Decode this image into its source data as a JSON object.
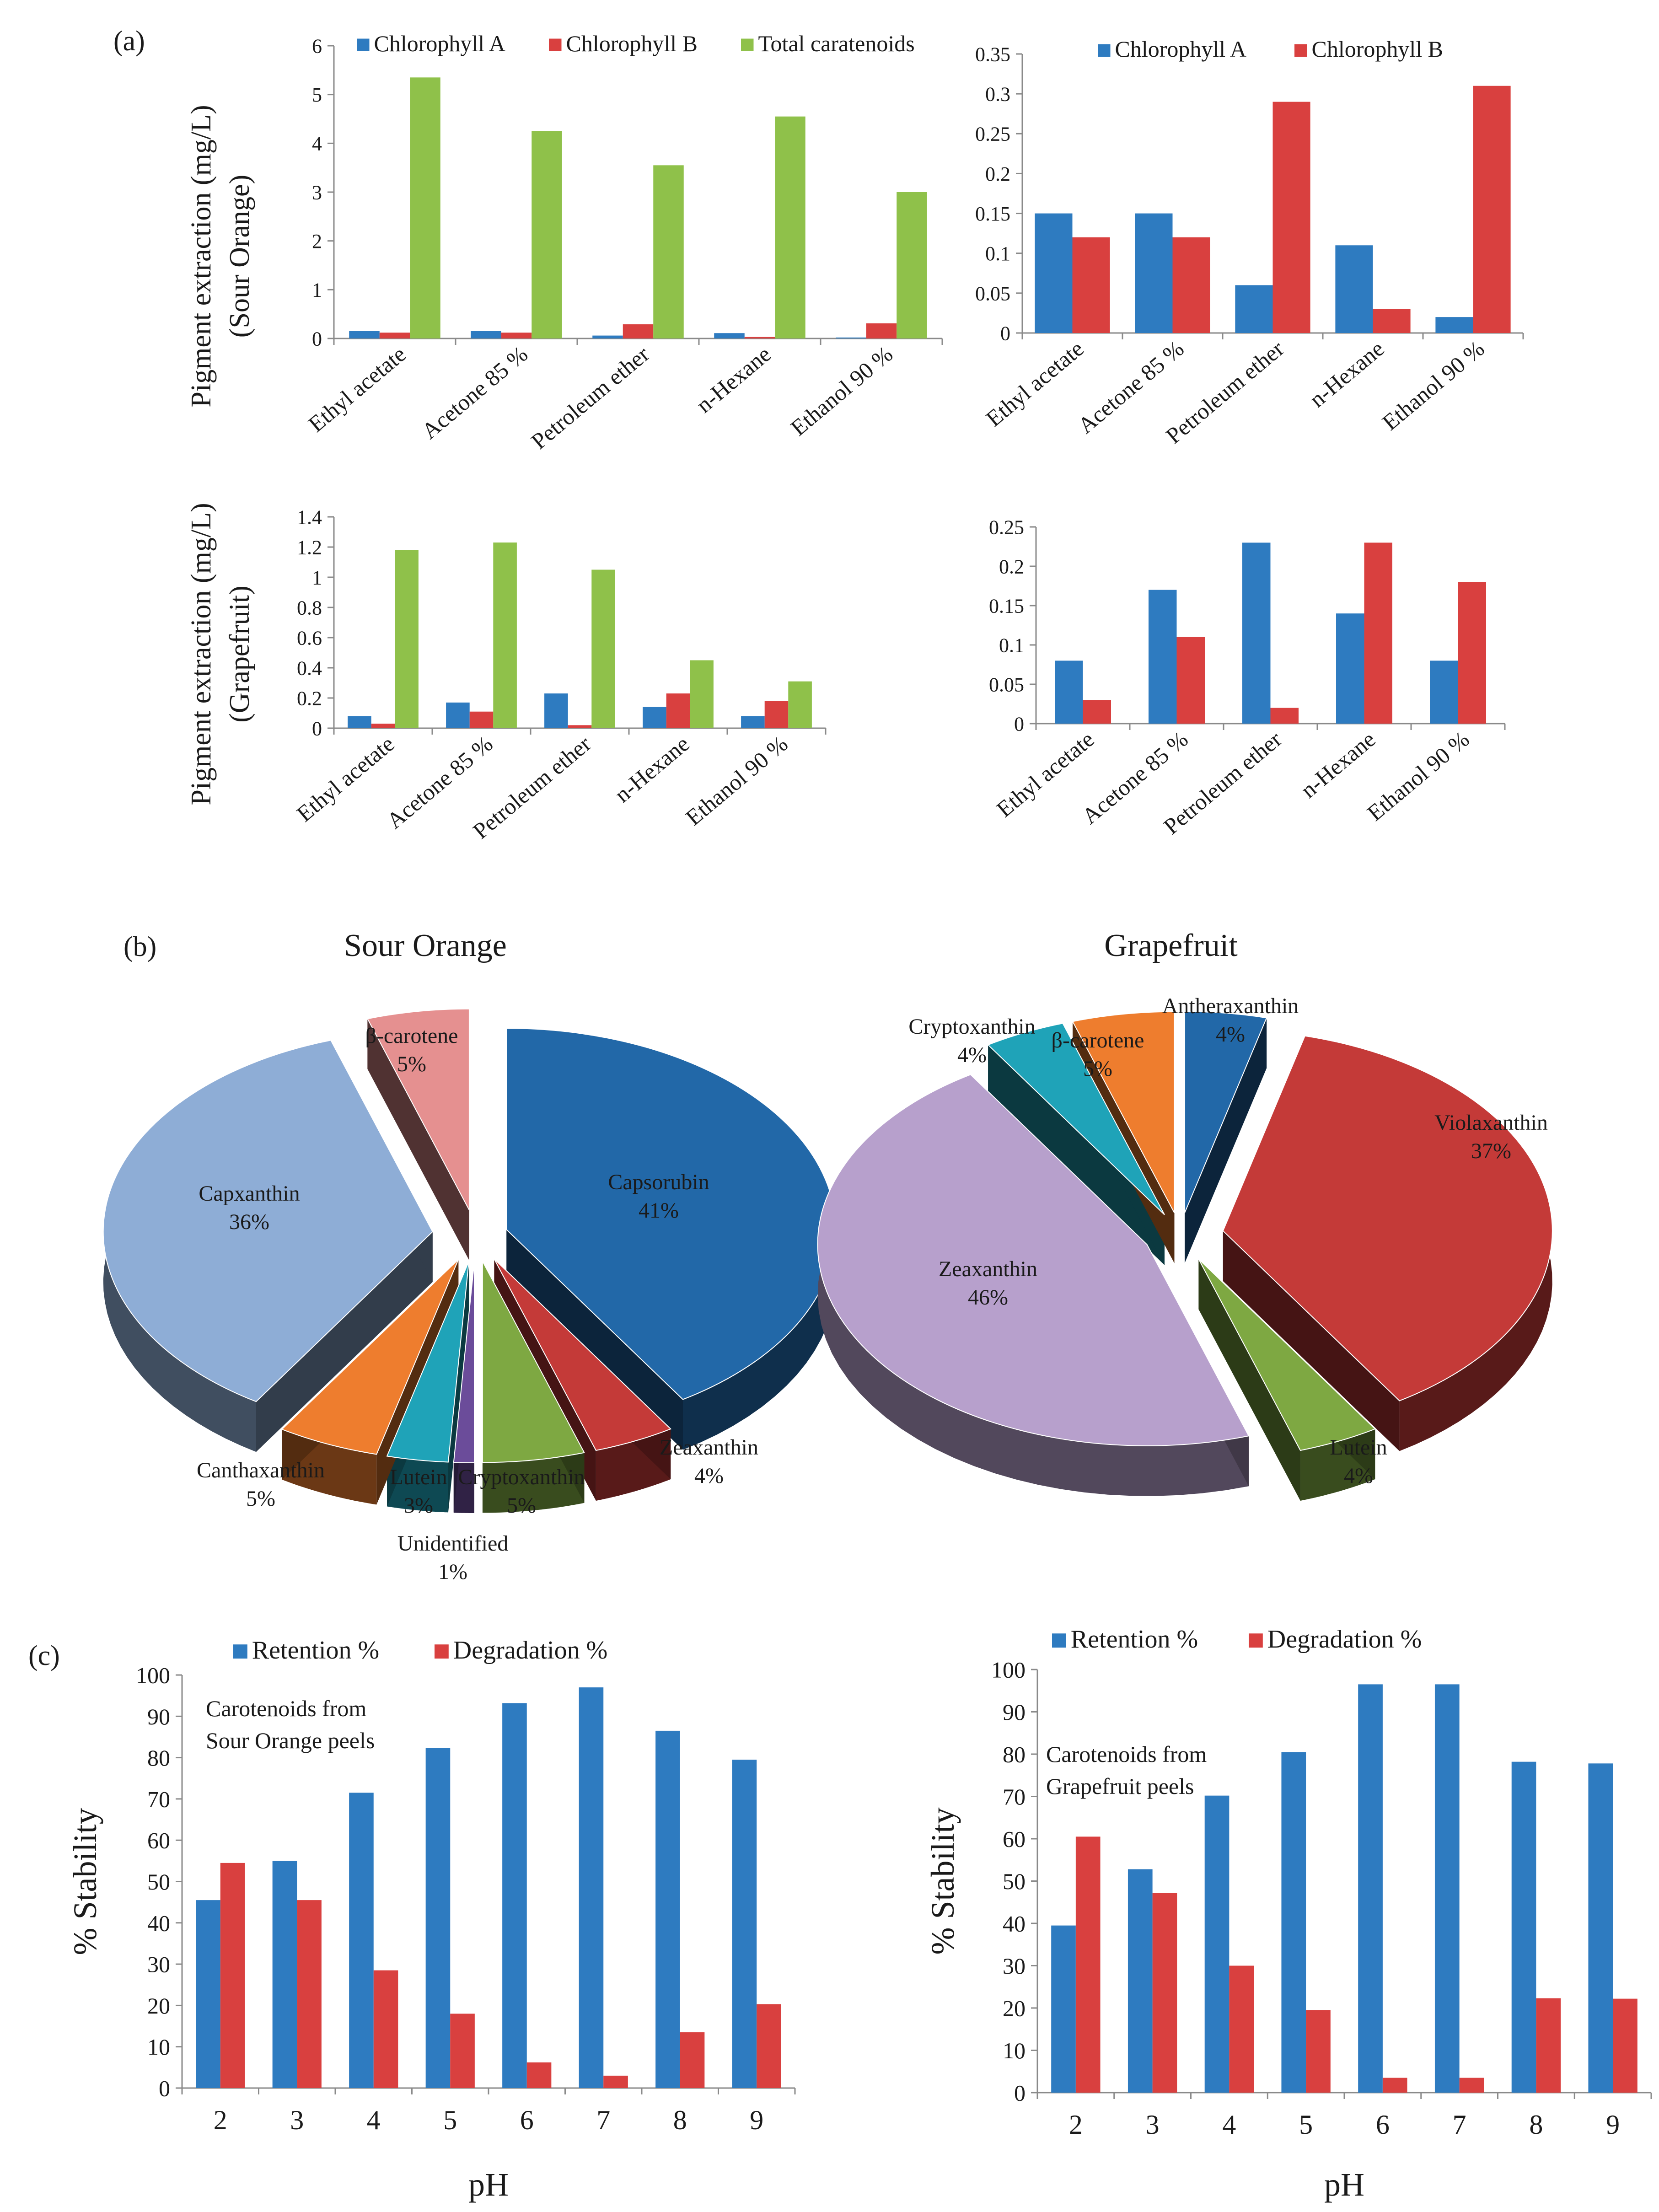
{
  "colors": {
    "blue": "#2E7BC0",
    "red": "#D9403F",
    "green": "#8FC14A",
    "axis": "#8A8A8A",
    "text": "#1A1A1A"
  },
  "panel_labels": [
    "(a)",
    "(b)",
    "(c)"
  ],
  "shared_labels": {
    "a_ylabel_sour": [
      "Pigment extraction (mg/L)",
      "(Sour Orange)"
    ],
    "a_ylabel_grape": [
      "Pigment extraction (mg/L)",
      "(Grapefruit)"
    ],
    "b_titles": [
      "Sour Orange",
      "Grapefruit"
    ]
  },
  "chart_data": [
    {
      "id": "a1",
      "type": "bar",
      "title": "",
      "xlabel": "",
      "ylabel": "Pigment extraction (mg/L) (Sour Orange)",
      "categories": [
        "Ethyl acetate",
        "Acetone 85 %",
        "Petroleum ether",
        "n-Hexane",
        "Ethanol 90 %"
      ],
      "series": [
        {
          "name": "Chlorophyll A",
          "color": "#2E7BC0",
          "values": [
            0.15,
            0.15,
            0.06,
            0.11,
            0.02
          ]
        },
        {
          "name": "Chlorophyll B",
          "color": "#D9403F",
          "values": [
            0.12,
            0.12,
            0.29,
            0.03,
            0.31
          ]
        },
        {
          "name": "Total caratenoids",
          "color": "#8FC14A",
          "values": [
            5.35,
            4.25,
            3.55,
            4.55,
            3.0
          ]
        }
      ],
      "ylim": [
        0,
        6
      ],
      "yticks": [
        0,
        1,
        2,
        3,
        4,
        5,
        6
      ],
      "legend": "top"
    },
    {
      "id": "a2",
      "type": "bar",
      "title": "",
      "xlabel": "",
      "ylabel": "",
      "categories": [
        "Ethyl acetate",
        "Acetone 85 %",
        "Petroleum ether",
        "n-Hexane",
        "Ethanol 90 %"
      ],
      "series": [
        {
          "name": "Chlorophyll A",
          "color": "#2E7BC0",
          "values": [
            0.15,
            0.15,
            0.06,
            0.11,
            0.02
          ]
        },
        {
          "name": "Chlorophyll B",
          "color": "#D9403F",
          "values": [
            0.12,
            0.12,
            0.29,
            0.03,
            0.31
          ]
        }
      ],
      "ylim": [
        0,
        0.35
      ],
      "yticks": [
        0,
        0.05,
        0.1,
        0.15,
        0.2,
        0.25,
        0.3,
        0.35
      ],
      "legend": "top"
    },
    {
      "id": "a3",
      "type": "bar",
      "title": "",
      "xlabel": "",
      "ylabel": "Pigment extraction (mg/L) (Grapefruit)",
      "categories": [
        "Ethyl acetate",
        "Acetone 85 %",
        "Petroleum ether",
        "n-Hexane",
        "Ethanol 90 %"
      ],
      "series": [
        {
          "name": "Chlorophyll A",
          "color": "#2E7BC0",
          "values": [
            0.08,
            0.17,
            0.23,
            0.14,
            0.08
          ]
        },
        {
          "name": "Chlorophyll B",
          "color": "#D9403F",
          "values": [
            0.03,
            0.11,
            0.02,
            0.23,
            0.18
          ]
        },
        {
          "name": "Total caratenoids",
          "color": "#8FC14A",
          "values": [
            1.18,
            1.23,
            1.05,
            0.45,
            0.31
          ]
        }
      ],
      "ylim": [
        0,
        1.4
      ],
      "yticks": [
        0,
        0.2,
        0.4,
        0.6,
        0.8,
        1,
        1.2,
        1.4
      ],
      "legend": "none"
    },
    {
      "id": "a4",
      "type": "bar",
      "title": "",
      "xlabel": "",
      "ylabel": "",
      "categories": [
        "Ethyl acetate",
        "Acetone 85 %",
        "Petroleum ether",
        "n-Hexane",
        "Ethanol 90 %"
      ],
      "series": [
        {
          "name": "Chlorophyll A",
          "color": "#2E7BC0",
          "values": [
            0.08,
            0.17,
            0.23,
            0.14,
            0.08
          ]
        },
        {
          "name": "Chlorophyll B",
          "color": "#D9403F",
          "values": [
            0.03,
            0.11,
            0.02,
            0.23,
            0.18
          ]
        }
      ],
      "ylim": [
        0,
        0.25
      ],
      "yticks": [
        0,
        0.05,
        0.1,
        0.15,
        0.2,
        0.25
      ],
      "legend": "none"
    },
    {
      "id": "b1",
      "type": "pie",
      "title": "Sour Orange",
      "slices": [
        {
          "label": "Capsorubin",
          "value": 41,
          "pct": "41%",
          "color": "#2268A8"
        },
        {
          "label": "Zeaxanthin",
          "value": 4,
          "pct": "4%",
          "color": "#C43A38"
        },
        {
          "label": "Cryptoxanthin",
          "value": 5,
          "pct": "5%",
          "color": "#7EA842"
        },
        {
          "label": "Unidentified",
          "value": 1,
          "pct": "1%",
          "color": "#6B4C9A"
        },
        {
          "label": "Lutein",
          "value": 3,
          "pct": "3%",
          "color": "#1FA3B8"
        },
        {
          "label": "Canthaxanthin",
          "value": 5,
          "pct": "5%",
          "color": "#EE7D2E"
        },
        {
          "label": "Capxanthin",
          "value": 36,
          "pct": "36%",
          "color": "#8EADD6"
        },
        {
          "label": "β-carotene",
          "value": 5,
          "pct": "5%",
          "color": "#E59090"
        }
      ]
    },
    {
      "id": "b2",
      "type": "pie",
      "title": "Grapefruit",
      "slices": [
        {
          "label": "Antheraxanthin",
          "value": 4,
          "pct": "4%",
          "color": "#2268A8"
        },
        {
          "label": "Violaxanthin",
          "value": 37,
          "pct": "37%",
          "color": "#C43A38"
        },
        {
          "label": "Lutein",
          "value": 4,
          "pct": "4%",
          "color": "#7EA842"
        },
        {
          "label": "Zeaxanthin",
          "value": 46,
          "pct": "46%",
          "color": "#B7A0CC"
        },
        {
          "label": "Cryptoxanthin",
          "value": 4,
          "pct": "4%",
          "color": "#1FA3B8"
        },
        {
          "label": "β-carotene",
          "value": 5,
          "pct": "5%",
          "color": "#EE7D2E"
        }
      ]
    },
    {
      "id": "c1",
      "type": "bar",
      "title": "",
      "annotation": [
        "Carotenoids from",
        "Sour Orange peels"
      ],
      "xlabel": "pH",
      "ylabel": "% Stability",
      "categories": [
        "2",
        "3",
        "4",
        "5",
        "6",
        "7",
        "8",
        "9"
      ],
      "series": [
        {
          "name": "Retention %",
          "color": "#2E7BC0",
          "values": [
            45.5,
            55,
            71.5,
            82.3,
            93.2,
            97,
            86.5,
            79.5
          ]
        },
        {
          "name": "Degradation %",
          "color": "#D9403F",
          "values": [
            54.5,
            45.5,
            28.5,
            18,
            6.2,
            3,
            13.5,
            20.3
          ]
        }
      ],
      "ylim": [
        0,
        100
      ],
      "yticks": [
        0,
        10,
        20,
        30,
        40,
        50,
        60,
        70,
        80,
        90,
        100
      ],
      "legend": "top"
    },
    {
      "id": "c2",
      "type": "bar",
      "title": "",
      "annotation": [
        "Carotenoids from",
        "Grapefruit peels"
      ],
      "xlabel": "pH",
      "ylabel": "% Stability",
      "categories": [
        "2",
        "3",
        "4",
        "5",
        "6",
        "7",
        "8",
        "9"
      ],
      "series": [
        {
          "name": "Retention %",
          "color": "#2E7BC0",
          "values": [
            39.5,
            52.8,
            70.2,
            80.5,
            96.5,
            96.5,
            78.2,
            77.8
          ]
        },
        {
          "name": "Degradation %",
          "color": "#D9403F",
          "values": [
            60.5,
            47.2,
            30,
            19.5,
            3.5,
            3.5,
            22.3,
            22.2
          ]
        }
      ],
      "ylim": [
        0,
        100
      ],
      "yticks": [
        0,
        10,
        20,
        30,
        40,
        50,
        60,
        70,
        80,
        90,
        100
      ],
      "legend": "top"
    }
  ]
}
